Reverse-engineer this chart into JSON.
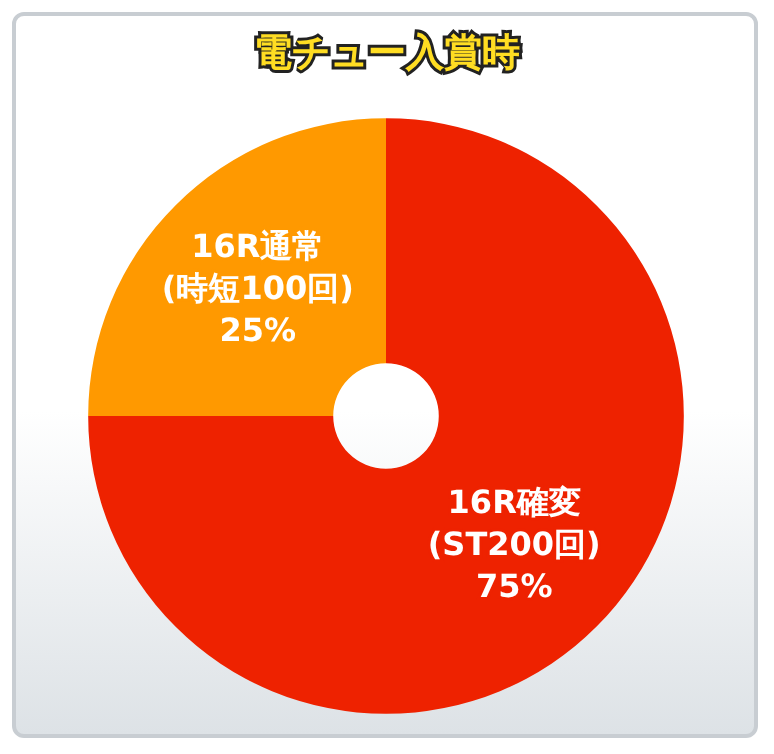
{
  "chart_data": {
    "type": "donut",
    "title": "電チュー入賞時",
    "categories": [
      "16R確変\n(ST200回)",
      "16R通常\n(時短100回)"
    ],
    "values": [
      75,
      25
    ],
    "colors": [
      "#ee2200",
      "#ff9900"
    ],
    "value_labels": [
      "75%",
      "25%"
    ]
  }
}
